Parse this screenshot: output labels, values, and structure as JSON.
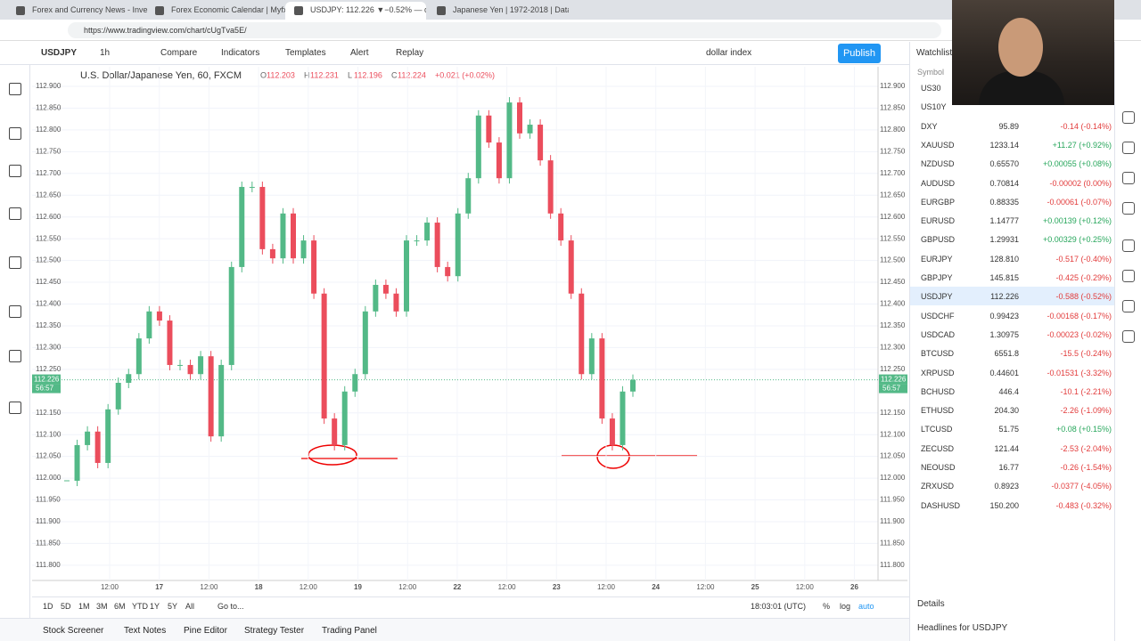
{
  "browser": {
    "tabs": [
      "Forex and Currency News - Inve...",
      "Forex Economic Calendar | Myfxb...",
      "USDJPY: 112.226 ▼−0.52% — dolla...",
      "Japanese Yen | 1972-2018 | Data"
    ],
    "url": "https://www.tradingview.com/chart/cUgTva5E/"
  },
  "toolbar": {
    "symbol": "USDJPY",
    "interval": "1h",
    "buttons": [
      "Compare",
      "Indicators",
      "Templates",
      "Alert",
      "Replay"
    ],
    "search": "dollar index",
    "publish": "Publish",
    "watchlist": "Watchlist"
  },
  "chart": {
    "title": "U.S. Dollar/Japanese Yen, 60, FXCM",
    "ohlc": [
      {
        "key": "O",
        "value": "112.203"
      },
      {
        "key": "H",
        "value": "112.231"
      },
      {
        "key": "L",
        "value": "112.196"
      },
      {
        "key": "C",
        "value": "112.224"
      },
      {
        "key": "",
        "value": "+0.021 (+0.02%)"
      }
    ],
    "ylim": [
      111.765,
      112.945
    ],
    "yticks": [
      {
        "value": 112.9,
        "label": "112.900"
      },
      {
        "value": 112.85,
        "label": "112.850"
      },
      {
        "value": 112.8,
        "label": "112.800"
      },
      {
        "value": 112.75,
        "label": "112.750"
      },
      {
        "value": 112.7,
        "label": "112.700"
      },
      {
        "value": 112.65,
        "label": "112.650"
      },
      {
        "value": 112.6,
        "label": "112.600"
      },
      {
        "value": 112.55,
        "label": "112.550"
      },
      {
        "value": 112.5,
        "label": "112.500"
      },
      {
        "value": 112.45,
        "label": "112.450"
      },
      {
        "value": 112.4,
        "label": "112.400"
      },
      {
        "value": 112.35,
        "label": "112.350"
      },
      {
        "value": 112.3,
        "label": "112.300"
      },
      {
        "value": 112.25,
        "label": "112.250"
      },
      {
        "value": 112.15,
        "label": "112.150"
      },
      {
        "value": 112.1,
        "label": "112.100"
      },
      {
        "value": 112.05,
        "label": "112.050"
      },
      {
        "value": 112,
        "label": "112.000"
      },
      {
        "value": 111.95,
        "label": "111.950"
      },
      {
        "value": 111.9,
        "label": "111.900"
      },
      {
        "value": 111.85,
        "label": "111.850"
      },
      {
        "value": 111.8,
        "label": "111.800"
      }
    ],
    "last": {
      "value": 112.226,
      "label": "112.226"
    },
    "countdown": "56:57",
    "xlabels": [
      "12:00",
      "17",
      "12:00",
      "18",
      "12:00",
      "19",
      "12:00",
      "22",
      "12:00",
      "23",
      "12:00",
      "24",
      "12:00",
      "25",
      "12:00",
      "26"
    ],
    "closes": [
      111.994,
      112.076,
      112.107,
      112.035,
      112.158,
      112.219,
      112.239,
      112.321,
      112.383,
      112.362,
      112.26,
      112.26,
      112.239,
      112.28,
      112.096,
      112.26,
      112.485,
      112.669,
      112.669,
      112.526,
      112.505,
      112.608,
      112.505,
      112.546,
      112.424,
      112.137,
      112.076,
      112.199,
      112.239,
      112.383,
      112.444,
      112.424,
      112.383,
      112.546,
      112.546,
      112.587,
      112.485,
      112.464,
      112.608,
      112.689,
      112.833,
      112.771,
      112.689,
      112.863,
      112.792,
      112.812,
      112.73,
      112.608,
      112.546,
      112.424,
      112.239,
      112.321,
      112.137,
      112.076,
      112.199,
      112.226
    ],
    "up_color": "#53b987",
    "down_color": "#eb4d5c"
  },
  "bottom": {
    "ranges": [
      "1D",
      "5D",
      "1M",
      "3M",
      "6M",
      "YTD",
      "1Y",
      "5Y",
      "All",
      "Go to..."
    ],
    "clock": "18:03:01 (UTC)",
    "scale": [
      "%",
      "log",
      "auto"
    ],
    "tabs": [
      "Stock Screener",
      "Text Notes",
      "Pine Editor",
      "Strategy Tester",
      "Trading Panel"
    ]
  },
  "watchlist": {
    "header": "Symbol",
    "rows": [
      [
        "US30"
      ],
      [
        "US10Y"
      ],
      [
        "DXY",
        "95.89",
        "-0.14 (-0.14%)"
      ],
      [
        "XAUUSD",
        "1233.14",
        "+11.27 (+0.92%)"
      ],
      [
        "NZDUSD",
        "0.65570",
        "+0.00055 (+0.08%)"
      ],
      [
        "AUDUSD",
        "0.70814",
        "-0.00002 (0.00%)"
      ],
      [
        "EURGBP",
        "0.88335",
        "-0.00061 (-0.07%)"
      ],
      [
        "EURUSD",
        "1.14777",
        "+0.00139 (+0.12%)"
      ],
      [
        "GBPUSD",
        "1.29931",
        "+0.00329 (+0.25%)"
      ],
      [
        "EURJPY",
        "128.810",
        "-0.517 (-0.40%)"
      ],
      [
        "GBPJPY",
        "145.815",
        "-0.425 (-0.29%)"
      ],
      [
        "USDJPY",
        "112.226",
        "-0.588 (-0.52%)"
      ],
      [
        "USDCHF",
        "0.99423",
        "-0.00168 (-0.17%)"
      ],
      [
        "USDCAD",
        "1.30975",
        "-0.00023 (-0.02%)"
      ],
      [
        "BTCUSD",
        "6551.8",
        "-15.5 (-0.24%)"
      ],
      [
        "XRPUSD",
        "0.44601",
        "-0.01531 (-3.32%)"
      ],
      [
        "BCHUSD",
        "446.4",
        "-10.1 (-2.21%)"
      ],
      [
        "ETHUSD",
        "204.30",
        "-2.26 (-1.09%)"
      ],
      [
        "LTCUSD",
        "51.75",
        "+0.08 (+0.15%)"
      ],
      [
        "ZECUSD",
        "121.44",
        "-2.53 (-2.04%)"
      ],
      [
        "NEOUSD",
        "16.77",
        "-0.26 (-1.54%)"
      ],
      [
        "ZRXUSD",
        "0.8923",
        "-0.0377 (-4.05%)"
      ],
      [
        "DASHUSD",
        "150.200",
        "-0.483 (-0.32%)"
      ]
    ],
    "selected": "USDJPY",
    "details": "Details",
    "headlines": "Headlines for USDJPY"
  }
}
